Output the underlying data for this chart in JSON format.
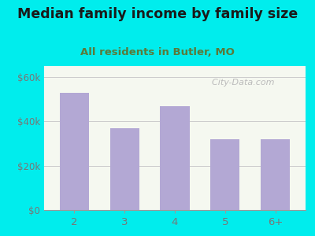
{
  "title": "Median family income by family size",
  "subtitle": "All residents in Butler, MO",
  "categories": [
    "2",
    "3",
    "4",
    "5",
    "6+"
  ],
  "values": [
    53000,
    37000,
    47000,
    32000,
    32000
  ],
  "bar_color": "#b3a8d4",
  "background_outer": "#00eded",
  "background_inner_top": "#e8f0e0",
  "background_inner_bottom": "#f5f8f0",
  "title_color": "#1a1a1a",
  "subtitle_color": "#5a7a3a",
  "tick_color": "#777777",
  "yticks": [
    0,
    20000,
    40000,
    60000
  ],
  "ytick_labels": [
    "$0",
    "$20k",
    "$40k",
    "$60k"
  ],
  "ylim": [
    0,
    65000
  ],
  "grid_color": "#cccccc",
  "watermark_text": "  City-Data.com",
  "watermark_color": "#bbbbbb",
  "title_fontsize": 12.5,
  "subtitle_fontsize": 9.5
}
